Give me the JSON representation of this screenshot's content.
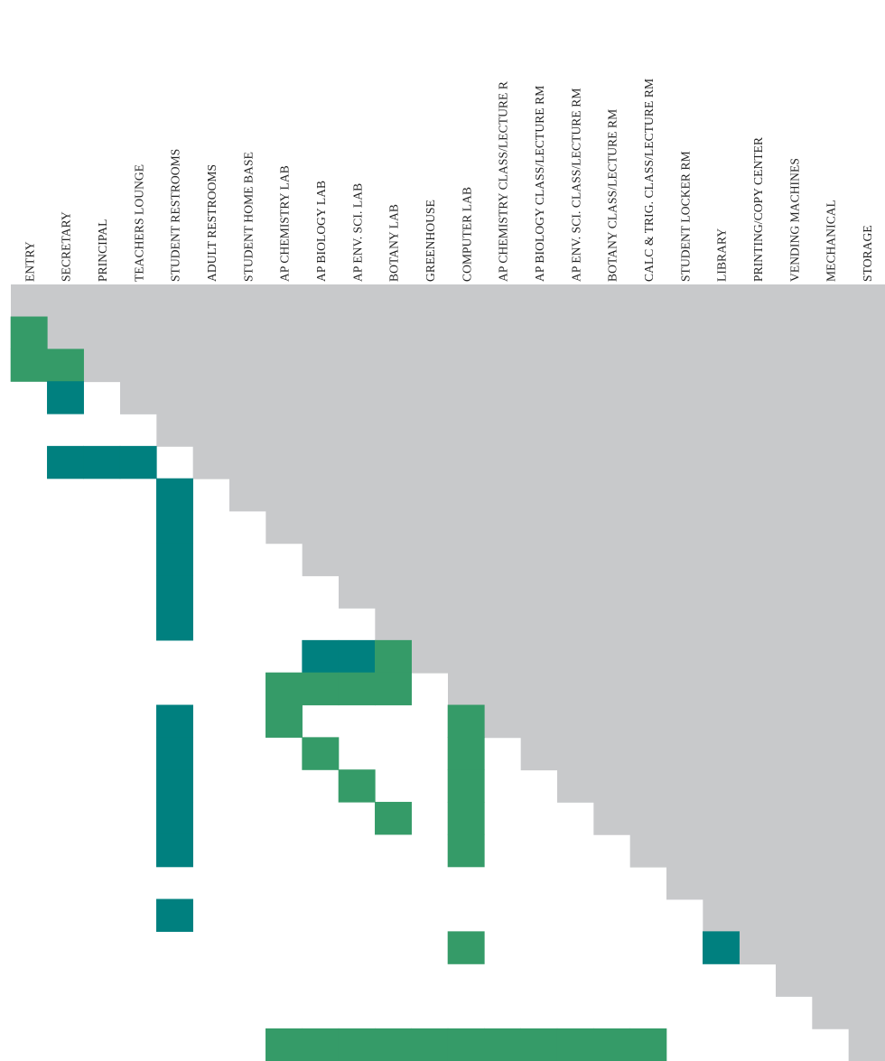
{
  "labels": [
    "ENTRY",
    "SECRETARY",
    "PRINCIPAL",
    "TEACHERS LOUNGE",
    "STUDENT RESTROOMS",
    "ADULT RESTROOMS",
    "STUDENT HOME BASE",
    "AP CHEMISTRY LAB",
    "AP BIOLOGY LAB",
    "AP ENV. SCI. LAB",
    "BOTANY LAB",
    "GREENHOUSE",
    "COMPUTER LAB",
    "AP CHEMISTRY CLASS/LECTURE R",
    "AP BIOLOGY CLASS/LECTURE RM",
    "AP ENV. SCI. CLASS/LECTURE RM",
    "BOTANY CLASS/LECTURE RM",
    "CALC & TRIG. CLASS/LECTURE RM",
    "STUDENT LOCKER RM",
    "LIBRARY",
    "PRINTING/COPY CENTER",
    "VENDING MACHINES",
    "MECHANICAL",
    "STORAGE"
  ],
  "colors": {
    "strong": "#00807f",
    "medium": "#359b68",
    "empty": "#c8c9cb",
    "background": "#ffffff"
  },
  "relations": [
    {
      "row": "SECRETARY",
      "col": "ENTRY",
      "level": "medium"
    },
    {
      "row": "PRINCIPAL",
      "col": "ENTRY",
      "level": "medium"
    },
    {
      "row": "PRINCIPAL",
      "col": "SECRETARY",
      "level": "medium"
    },
    {
      "row": "TEACHERS LOUNGE",
      "col": "SECRETARY",
      "level": "strong"
    },
    {
      "row": "ADULT RESTROOMS",
      "col": "SECRETARY",
      "level": "strong"
    },
    {
      "row": "ADULT RESTROOMS",
      "col": "PRINCIPAL",
      "level": "strong"
    },
    {
      "row": "ADULT RESTROOMS",
      "col": "TEACHERS LOUNGE",
      "level": "strong"
    },
    {
      "row": "STUDENT HOME BASE",
      "col": "STUDENT RESTROOMS",
      "level": "strong"
    },
    {
      "row": "AP CHEMISTRY LAB",
      "col": "STUDENT RESTROOMS",
      "level": "strong"
    },
    {
      "row": "AP BIOLOGY LAB",
      "col": "STUDENT RESTROOMS",
      "level": "strong"
    },
    {
      "row": "AP ENV. SCI. LAB",
      "col": "STUDENT RESTROOMS",
      "level": "strong"
    },
    {
      "row": "BOTANY LAB",
      "col": "STUDENT RESTROOMS",
      "level": "strong"
    },
    {
      "row": "GREENHOUSE",
      "col": "AP BIOLOGY LAB",
      "level": "strong"
    },
    {
      "row": "GREENHOUSE",
      "col": "AP ENV. SCI. LAB",
      "level": "strong"
    },
    {
      "row": "GREENHOUSE",
      "col": "BOTANY LAB",
      "level": "medium"
    },
    {
      "row": "COMPUTER LAB",
      "col": "AP CHEMISTRY LAB",
      "level": "medium"
    },
    {
      "row": "COMPUTER LAB",
      "col": "AP BIOLOGY LAB",
      "level": "medium"
    },
    {
      "row": "COMPUTER LAB",
      "col": "AP ENV. SCI. LAB",
      "level": "medium"
    },
    {
      "row": "COMPUTER LAB",
      "col": "BOTANY LAB",
      "level": "medium"
    },
    {
      "row": "AP CHEMISTRY CLASS/LECTURE R",
      "col": "STUDENT RESTROOMS",
      "level": "strong"
    },
    {
      "row": "AP CHEMISTRY CLASS/LECTURE R",
      "col": "AP CHEMISTRY LAB",
      "level": "medium"
    },
    {
      "row": "AP CHEMISTRY CLASS/LECTURE R",
      "col": "COMPUTER LAB",
      "level": "medium"
    },
    {
      "row": "AP BIOLOGY CLASS/LECTURE RM",
      "col": "STUDENT RESTROOMS",
      "level": "strong"
    },
    {
      "row": "AP BIOLOGY CLASS/LECTURE RM",
      "col": "AP BIOLOGY LAB",
      "level": "medium"
    },
    {
      "row": "AP BIOLOGY CLASS/LECTURE RM",
      "col": "COMPUTER LAB",
      "level": "medium"
    },
    {
      "row": "AP ENV. SCI. CLASS/LECTURE RM",
      "col": "STUDENT RESTROOMS",
      "level": "strong"
    },
    {
      "row": "AP ENV. SCI. CLASS/LECTURE RM",
      "col": "AP ENV. SCI. LAB",
      "level": "medium"
    },
    {
      "row": "AP ENV. SCI. CLASS/LECTURE RM",
      "col": "COMPUTER LAB",
      "level": "medium"
    },
    {
      "row": "BOTANY CLASS/LECTURE RM",
      "col": "STUDENT RESTROOMS",
      "level": "strong"
    },
    {
      "row": "BOTANY CLASS/LECTURE RM",
      "col": "BOTANY LAB",
      "level": "medium"
    },
    {
      "row": "BOTANY CLASS/LECTURE RM",
      "col": "COMPUTER LAB",
      "level": "medium"
    },
    {
      "row": "CALC & TRIG. CLASS/LECTURE RM",
      "col": "STUDENT RESTROOMS",
      "level": "strong"
    },
    {
      "row": "CALC & TRIG. CLASS/LECTURE RM",
      "col": "COMPUTER LAB",
      "level": "medium"
    },
    {
      "row": "LIBRARY",
      "col": "STUDENT RESTROOMS",
      "level": "strong"
    },
    {
      "row": "PRINTING/COPY CENTER",
      "col": "COMPUTER LAB",
      "level": "medium"
    },
    {
      "row": "PRINTING/COPY CENTER",
      "col": "LIBRARY",
      "level": "strong"
    },
    {
      "row": "STORAGE",
      "col": "AP CHEMISTRY LAB",
      "level": "medium"
    },
    {
      "row": "STORAGE",
      "col": "AP BIOLOGY LAB",
      "level": "medium"
    },
    {
      "row": "STORAGE",
      "col": "AP ENV. SCI. LAB",
      "level": "medium"
    },
    {
      "row": "STORAGE",
      "col": "BOTANY LAB",
      "level": "medium"
    },
    {
      "row": "STORAGE",
      "col": "GREENHOUSE",
      "level": "medium"
    },
    {
      "row": "STORAGE",
      "col": "COMPUTER LAB",
      "level": "medium"
    },
    {
      "row": "STORAGE",
      "col": "AP CHEMISTRY CLASS/LECTURE R",
      "level": "medium"
    },
    {
      "row": "STORAGE",
      "col": "AP BIOLOGY CLASS/LECTURE RM",
      "level": "medium"
    },
    {
      "row": "STORAGE",
      "col": "AP ENV. SCI. CLASS/LECTURE RM",
      "level": "medium"
    },
    {
      "row": "STORAGE",
      "col": "BOTANY CLASS/LECTURE RM",
      "level": "medium"
    },
    {
      "row": "STORAGE",
      "col": "CALC & TRIG. CLASS/LECTURE RM",
      "level": "medium"
    }
  ]
}
